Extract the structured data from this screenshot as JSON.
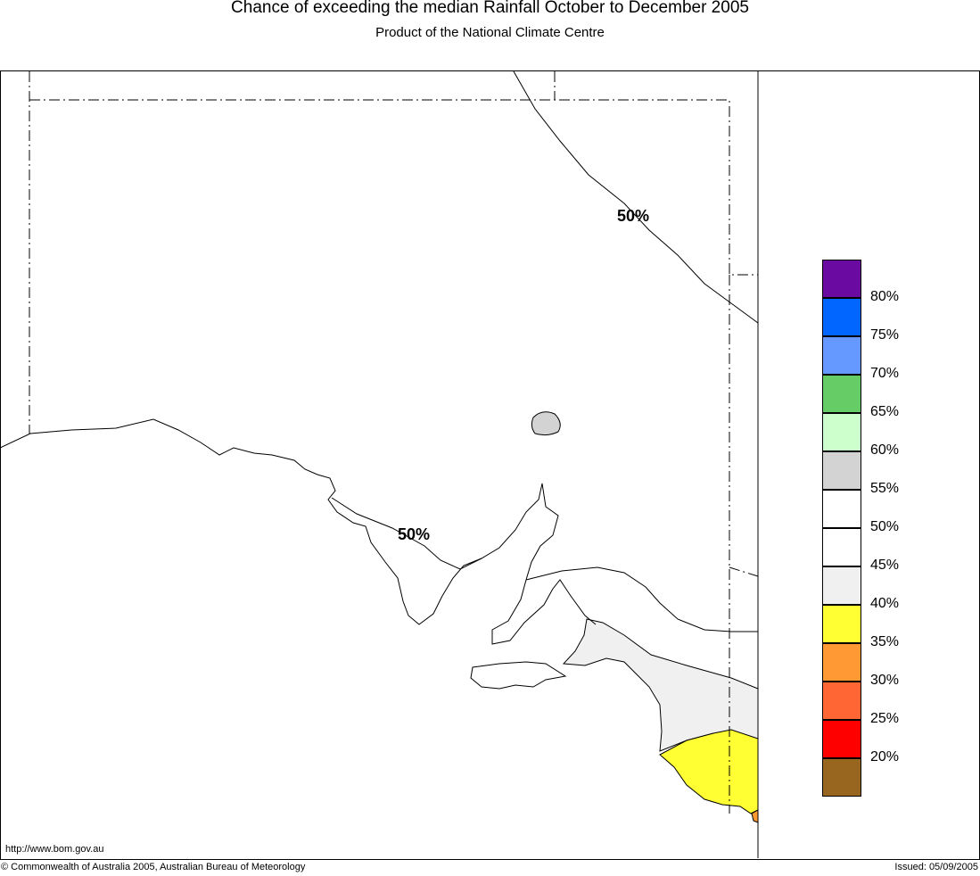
{
  "header": {
    "title": "Chance of exceeding the median Rainfall October to December 2005",
    "subtitle": "Product of the National Climate Centre"
  },
  "map": {
    "contour_labels": [
      "50%",
      "50%"
    ],
    "url_text": "http://www.bom.gov.au"
  },
  "legend": {
    "swatches": [
      {
        "color": "#6a0aa0"
      },
      {
        "color": "#0066ff"
      },
      {
        "color": "#6699ff"
      },
      {
        "color": "#66cc66"
      },
      {
        "color": "#ccffcc"
      },
      {
        "color": "#d3d3d3"
      },
      {
        "color": "#ffffff"
      },
      {
        "color": "#ffffff"
      },
      {
        "color": "#f0f0f0"
      },
      {
        "color": "#ffff33"
      },
      {
        "color": "#ff9933"
      },
      {
        "color": "#ff6633"
      },
      {
        "color": "#ff0000"
      },
      {
        "color": "#99661f"
      }
    ],
    "labels": [
      "80%",
      "75%",
      "70%",
      "65%",
      "60%",
      "55%",
      "50%",
      "45%",
      "40%",
      "35%",
      "30%",
      "25%",
      "20%"
    ]
  },
  "footer": {
    "copyright": "© Commonwealth of Australia 2005, Australian Bureau of Meteorology",
    "issued": "Issued: 05/09/2005"
  }
}
